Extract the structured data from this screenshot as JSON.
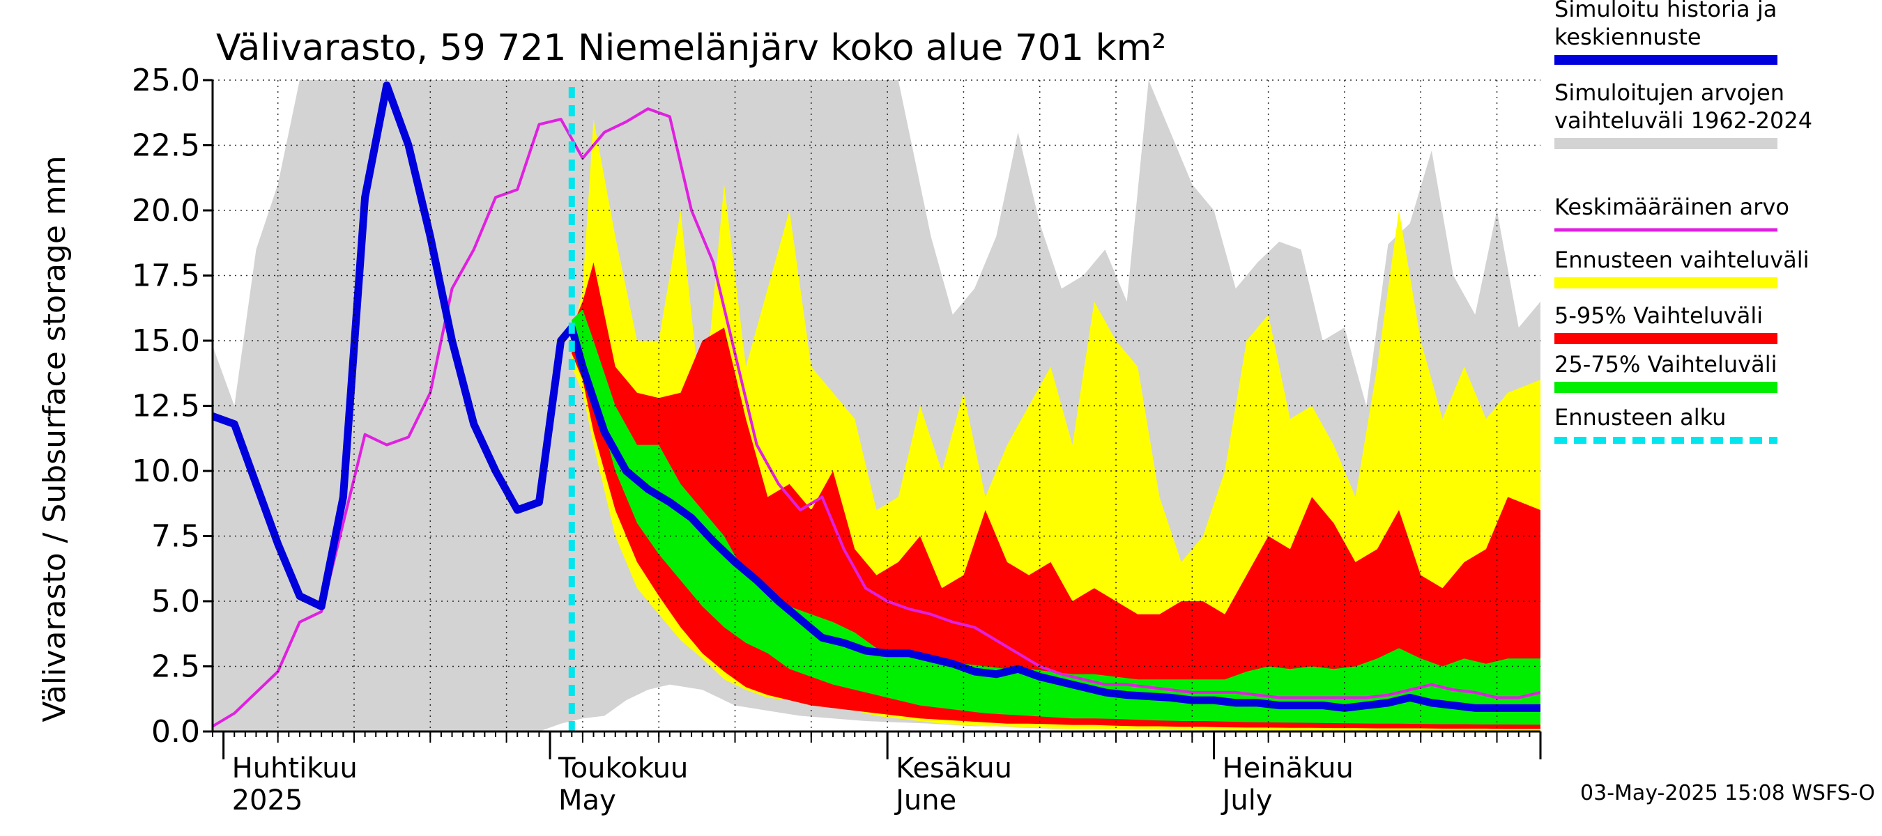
{
  "chart_data": {
    "type": "area",
    "title": "Välivarasto, 59 721 Niemelänjärv koko alue 701 km²",
    "ylabel": "Välivarasto / Subsurface storage  mm",
    "ylim": [
      0,
      25
    ],
    "yticks": [
      "0.0",
      "2.5",
      "5.0",
      "7.5",
      "10.0",
      "12.5",
      "15.0",
      "17.5",
      "20.0",
      "22.5",
      "25.0"
    ],
    "x_start": "2025-03-31",
    "x_end": "2025-07-31",
    "forecast_start": "2025-05-03",
    "grid": true,
    "legend_position": "right",
    "months": [
      {
        "fi": "Huhtikuu",
        "en": "2025",
        "date": "2025-04-01"
      },
      {
        "fi": "Toukokuu",
        "en": "May",
        "date": "2025-05-01"
      },
      {
        "fi": "Kesäkuu",
        "en": "June",
        "date": "2025-06-01"
      },
      {
        "fi": "Heinäkuu",
        "en": "July",
        "date": "2025-07-01"
      }
    ],
    "legend": [
      {
        "label": "Simuloitu historia ja\nkeskiennuste",
        "color": "#0000dd"
      },
      {
        "label": "Simuloitujen arvojen\nvaihteluväli 1962-2024",
        "color": "#d3d3d3"
      },
      {
        "label": "Keskimääräinen arvo",
        "color": "#e020e0"
      },
      {
        "label": "Ennusteen vaihteluväli",
        "color": "#ffff00"
      },
      {
        "label": "5-95% Vaihteluväli",
        "color": "#ff0000"
      },
      {
        "label": "25-75% Vaihteluväli",
        "color": "#00ee00"
      },
      {
        "label": "Ennusteen alku",
        "color": "#00e5ee"
      }
    ],
    "colors": {
      "history_range": "#d3d3d3",
      "forecast_range": "#ffff00",
      "p5_95": "#ff0000",
      "p25_75": "#00ee00",
      "median": "#0000dd",
      "mean": "#e020e0",
      "forecast_start": "#00e5ee"
    },
    "series": [
      {
        "name": "Simuloitujen arvojen vaihteluväli 1962-2024",
        "kind": "band",
        "x": [
          "2025-03-31",
          "2025-04-02",
          "2025-04-04",
          "2025-04-06",
          "2025-04-08",
          "2025-04-10",
          "2025-04-12",
          "2025-04-15",
          "2025-04-18",
          "2025-04-21",
          "2025-04-24",
          "2025-04-27",
          "2025-04-30",
          "2025-05-02",
          "2025-05-04",
          "2025-05-06",
          "2025-05-08",
          "2025-05-10",
          "2025-05-12",
          "2025-05-15",
          "2025-05-18",
          "2025-05-21",
          "2025-05-24",
          "2025-05-27",
          "2025-05-30",
          "2025-06-02",
          "2025-06-05",
          "2025-06-07",
          "2025-06-09",
          "2025-06-11",
          "2025-06-13",
          "2025-06-15",
          "2025-06-17",
          "2025-06-19",
          "2025-06-21",
          "2025-06-23",
          "2025-06-25",
          "2025-06-27",
          "2025-06-29",
          "2025-07-01",
          "2025-07-03",
          "2025-07-05",
          "2025-07-07",
          "2025-07-09",
          "2025-07-11",
          "2025-07-13",
          "2025-07-15",
          "2025-07-17",
          "2025-07-19",
          "2025-07-21",
          "2025-07-23",
          "2025-07-25",
          "2025-07-27",
          "2025-07-29",
          "2025-07-31"
        ],
        "low": [
          0,
          0,
          0,
          0,
          0,
          0,
          0,
          0,
          0,
          0,
          0,
          0,
          0,
          0.3,
          0.5,
          0.6,
          1.2,
          1.6,
          1.8,
          1.6,
          1.0,
          0.8,
          0.6,
          0.5,
          0.4,
          0.35,
          0.3,
          0.25,
          0.2,
          0.2,
          0.15,
          0.12,
          0.1,
          0.1,
          0.08,
          0.08,
          0.07,
          0.06,
          0.06,
          0.05,
          0.05,
          0.05,
          0.05,
          0.04,
          0.04,
          0.04,
          0.04,
          0.04,
          0.03,
          0.03,
          0.03,
          0.03,
          0.03,
          0.03,
          0.03
        ],
        "high": [
          14.8,
          12.5,
          18.5,
          21.0,
          25.0,
          25.0,
          25.0,
          25.0,
          25.0,
          25.0,
          25.0,
          25.0,
          25.0,
          25.0,
          25.0,
          25.0,
          25.0,
          25.0,
          25.0,
          25.0,
          25.0,
          25.0,
          25.0,
          25.0,
          25.0,
          25.0,
          19.0,
          16.0,
          17.0,
          19.0,
          23.0,
          19.5,
          17.0,
          17.5,
          18.5,
          16.5,
          25.0,
          23.0,
          21.0,
          20.0,
          17.0,
          18.0,
          18.8,
          18.5,
          15.0,
          15.5,
          12.5,
          18.7,
          19.5,
          22.3,
          17.5,
          16.0,
          20.0,
          15.5,
          16.5
        ]
      },
      {
        "name": "Ennusteen vaihteluväli",
        "kind": "band",
        "x": [
          "2025-05-03",
          "2025-05-04",
          "2025-05-05",
          "2025-05-07",
          "2025-05-09",
          "2025-05-11",
          "2025-05-13",
          "2025-05-15",
          "2025-05-17",
          "2025-05-19",
          "2025-05-21",
          "2025-05-23",
          "2025-05-25",
          "2025-05-27",
          "2025-05-29",
          "2025-05-31",
          "2025-06-02",
          "2025-06-04",
          "2025-06-06",
          "2025-06-08",
          "2025-06-10",
          "2025-06-12",
          "2025-06-14",
          "2025-06-16",
          "2025-06-18",
          "2025-06-20",
          "2025-06-22",
          "2025-06-24",
          "2025-06-26",
          "2025-06-28",
          "2025-06-30",
          "2025-07-02",
          "2025-07-04",
          "2025-07-06",
          "2025-07-08",
          "2025-07-10",
          "2025-07-12",
          "2025-07-14",
          "2025-07-16",
          "2025-07-18",
          "2025-07-20",
          "2025-07-22",
          "2025-07-24",
          "2025-07-26",
          "2025-07-28",
          "2025-07-31"
        ],
        "low": [
          14.0,
          13.0,
          11.0,
          7.5,
          5.5,
          4.5,
          3.5,
          2.8,
          2.0,
          1.6,
          1.3,
          1.2,
          1.0,
          0.9,
          0.8,
          0.6,
          0.5,
          0.4,
          0.3,
          0.25,
          0.2,
          0.2,
          0.15,
          0.12,
          0.1,
          0.1,
          0.08,
          0.08,
          0.06,
          0.05,
          0.05,
          0.05,
          0.04,
          0.04,
          0.04,
          0.03,
          0.03,
          0.03,
          0.03,
          0.03,
          0.03,
          0.03,
          0.03,
          0.03,
          0.03,
          0.03
        ],
        "high": [
          15.0,
          17.0,
          23.5,
          19.0,
          15.0,
          15.0,
          20.0,
          12.0,
          21.0,
          14.0,
          17.0,
          20.0,
          14.0,
          13.0,
          12.0,
          8.5,
          9.0,
          12.5,
          10.0,
          13.0,
          9.0,
          11.0,
          12.5,
          14.0,
          11.0,
          16.5,
          15.0,
          14.0,
          9.0,
          6.5,
          7.5,
          10.0,
          15.0,
          16.0,
          12.0,
          12.5,
          11.0,
          9.0,
          14.0,
          20.0,
          15.0,
          12.0,
          14.0,
          12.0,
          13.0,
          13.5
        ]
      },
      {
        "name": "5-95% Vaihteluväli",
        "kind": "band",
        "x": [
          "2025-05-03",
          "2025-05-04",
          "2025-05-05",
          "2025-05-07",
          "2025-05-09",
          "2025-05-11",
          "2025-05-13",
          "2025-05-15",
          "2025-05-17",
          "2025-05-19",
          "2025-05-21",
          "2025-05-23",
          "2025-05-25",
          "2025-05-27",
          "2025-05-29",
          "2025-05-31",
          "2025-06-02",
          "2025-06-04",
          "2025-06-06",
          "2025-06-08",
          "2025-06-10",
          "2025-06-12",
          "2025-06-14",
          "2025-06-16",
          "2025-06-18",
          "2025-06-20",
          "2025-06-22",
          "2025-06-24",
          "2025-06-26",
          "2025-06-28",
          "2025-06-30",
          "2025-07-02",
          "2025-07-04",
          "2025-07-06",
          "2025-07-08",
          "2025-07-10",
          "2025-07-12",
          "2025-07-14",
          "2025-07-16",
          "2025-07-18",
          "2025-07-20",
          "2025-07-22",
          "2025-07-24",
          "2025-07-26",
          "2025-07-28",
          "2025-07-31"
        ],
        "low": [
          14.5,
          13.5,
          11.5,
          8.5,
          6.5,
          5.2,
          4.0,
          3.0,
          2.3,
          1.7,
          1.4,
          1.2,
          1.0,
          0.9,
          0.8,
          0.7,
          0.6,
          0.5,
          0.45,
          0.4,
          0.35,
          0.3,
          0.3,
          0.28,
          0.25,
          0.25,
          0.22,
          0.2,
          0.2,
          0.18,
          0.18,
          0.16,
          0.15,
          0.15,
          0.14,
          0.14,
          0.13,
          0.13,
          0.12,
          0.12,
          0.12,
          0.11,
          0.11,
          0.11,
          0.1,
          0.1
        ],
        "high": [
          15.5,
          16.5,
          18.0,
          14.0,
          13.0,
          12.8,
          13.0,
          15.0,
          15.5,
          12.0,
          9.0,
          9.5,
          8.5,
          10.0,
          7.0,
          6.0,
          6.5,
          7.5,
          5.5,
          6.0,
          8.5,
          6.5,
          6.0,
          6.5,
          5.0,
          5.5,
          5.0,
          4.5,
          4.5,
          5.0,
          5.0,
          4.5,
          6.0,
          7.5,
          7.0,
          9.0,
          8.0,
          6.5,
          7.0,
          8.5,
          6.0,
          5.5,
          6.5,
          7.0,
          9.0,
          8.5
        ]
      },
      {
        "name": "25-75% Vaihteluväli",
        "kind": "band",
        "x": [
          "2025-05-03",
          "2025-05-04",
          "2025-05-05",
          "2025-05-07",
          "2025-05-09",
          "2025-05-11",
          "2025-05-13",
          "2025-05-15",
          "2025-05-17",
          "2025-05-19",
          "2025-05-21",
          "2025-05-23",
          "2025-05-25",
          "2025-05-27",
          "2025-05-29",
          "2025-05-31",
          "2025-06-02",
          "2025-06-04",
          "2025-06-06",
          "2025-06-08",
          "2025-06-10",
          "2025-06-12",
          "2025-06-14",
          "2025-06-16",
          "2025-06-18",
          "2025-06-20",
          "2025-06-22",
          "2025-06-24",
          "2025-06-26",
          "2025-06-28",
          "2025-06-30",
          "2025-07-02",
          "2025-07-04",
          "2025-07-06",
          "2025-07-08",
          "2025-07-10",
          "2025-07-12",
          "2025-07-14",
          "2025-07-16",
          "2025-07-18",
          "2025-07-20",
          "2025-07-22",
          "2025-07-24",
          "2025-07-26",
          "2025-07-28",
          "2025-07-31"
        ],
        "low": [
          15.0,
          14.5,
          13.0,
          10.0,
          8.0,
          6.8,
          5.8,
          4.8,
          4.0,
          3.4,
          3.0,
          2.4,
          2.1,
          1.8,
          1.6,
          1.4,
          1.2,
          1.0,
          0.9,
          0.8,
          0.7,
          0.65,
          0.6,
          0.55,
          0.5,
          0.5,
          0.48,
          0.45,
          0.42,
          0.4,
          0.4,
          0.38,
          0.36,
          0.35,
          0.34,
          0.33,
          0.32,
          0.31,
          0.3,
          0.3,
          0.29,
          0.28,
          0.28,
          0.27,
          0.27,
          0.26
        ],
        "high": [
          15.8,
          16.2,
          15.0,
          12.5,
          11.0,
          11.0,
          9.5,
          8.5,
          7.5,
          6.0,
          5.5,
          4.8,
          4.5,
          4.2,
          3.8,
          3.2,
          3.0,
          3.0,
          2.8,
          2.6,
          2.5,
          2.4,
          2.4,
          2.3,
          2.2,
          2.2,
          2.1,
          2.0,
          2.0,
          2.0,
          2.0,
          2.0,
          2.3,
          2.5,
          2.4,
          2.5,
          2.4,
          2.5,
          2.8,
          3.2,
          2.8,
          2.5,
          2.8,
          2.6,
          2.8,
          2.8
        ]
      },
      {
        "name": "Keskimääräinen arvo",
        "kind": "line",
        "x": [
          "2025-03-31",
          "2025-04-02",
          "2025-04-04",
          "2025-04-06",
          "2025-04-08",
          "2025-04-10",
          "2025-04-12",
          "2025-04-14",
          "2025-04-16",
          "2025-04-18",
          "2025-04-20",
          "2025-04-22",
          "2025-04-24",
          "2025-04-26",
          "2025-04-28",
          "2025-04-30",
          "2025-05-02",
          "2025-05-04",
          "2025-05-06",
          "2025-05-08",
          "2025-05-10",
          "2025-05-12",
          "2025-05-14",
          "2025-05-16",
          "2025-05-18",
          "2025-05-20",
          "2025-05-22",
          "2025-05-24",
          "2025-05-26",
          "2025-05-28",
          "2025-05-30",
          "2025-06-01",
          "2025-06-03",
          "2025-06-05",
          "2025-06-07",
          "2025-06-09",
          "2025-06-11",
          "2025-06-13",
          "2025-06-15",
          "2025-06-17",
          "2025-06-19",
          "2025-06-21",
          "2025-06-23",
          "2025-06-25",
          "2025-06-27",
          "2025-06-29",
          "2025-07-01",
          "2025-07-03",
          "2025-07-05",
          "2025-07-07",
          "2025-07-09",
          "2025-07-11",
          "2025-07-13",
          "2025-07-15",
          "2025-07-17",
          "2025-07-19",
          "2025-07-21",
          "2025-07-23",
          "2025-07-25",
          "2025-07-27",
          "2025-07-29",
          "2025-07-31"
        ],
        "values": [
          0.2,
          0.7,
          1.5,
          2.3,
          4.2,
          4.6,
          8.0,
          11.4,
          11.0,
          11.3,
          13.0,
          17.0,
          18.5,
          20.5,
          20.8,
          23.3,
          23.5,
          22.0,
          23.0,
          23.4,
          23.9,
          23.6,
          20.0,
          18.0,
          14.5,
          11.0,
          9.5,
          8.5,
          9.0,
          7.0,
          5.5,
          5.0,
          4.7,
          4.5,
          4.2,
          4.0,
          3.5,
          3.0,
          2.5,
          2.2,
          2.0,
          1.8,
          1.8,
          1.7,
          1.6,
          1.5,
          1.5,
          1.5,
          1.4,
          1.3,
          1.3,
          1.3,
          1.3,
          1.3,
          1.4,
          1.6,
          1.8,
          1.6,
          1.5,
          1.3,
          1.3,
          1.5
        ]
      },
      {
        "name": "Simuloitu historia ja keskiennuste",
        "kind": "line",
        "x": [
          "2025-03-31",
          "2025-04-02",
          "2025-04-04",
          "2025-04-06",
          "2025-04-08",
          "2025-04-10",
          "2025-04-12",
          "2025-04-14",
          "2025-04-16",
          "2025-04-18",
          "2025-04-20",
          "2025-04-22",
          "2025-04-24",
          "2025-04-26",
          "2025-04-28",
          "2025-04-30",
          "2025-05-02",
          "2025-05-03",
          "2025-05-04",
          "2025-05-06",
          "2025-05-08",
          "2025-05-10",
          "2025-05-12",
          "2025-05-14",
          "2025-05-16",
          "2025-05-18",
          "2025-05-20",
          "2025-05-22",
          "2025-05-24",
          "2025-05-26",
          "2025-05-28",
          "2025-05-30",
          "2025-06-01",
          "2025-06-03",
          "2025-06-05",
          "2025-06-07",
          "2025-06-09",
          "2025-06-11",
          "2025-06-13",
          "2025-06-15",
          "2025-06-17",
          "2025-06-19",
          "2025-06-21",
          "2025-06-23",
          "2025-06-25",
          "2025-06-27",
          "2025-06-29",
          "2025-07-01",
          "2025-07-03",
          "2025-07-05",
          "2025-07-07",
          "2025-07-09",
          "2025-07-11",
          "2025-07-13",
          "2025-07-15",
          "2025-07-17",
          "2025-07-19",
          "2025-07-21",
          "2025-07-23",
          "2025-07-25",
          "2025-07-27",
          "2025-07-29",
          "2025-07-31"
        ],
        "values": [
          12.1,
          11.8,
          9.5,
          7.2,
          5.2,
          4.8,
          9.0,
          20.5,
          24.8,
          22.5,
          19.0,
          15.0,
          11.8,
          10.0,
          8.5,
          8.8,
          15.0,
          15.5,
          14.0,
          11.5,
          10.0,
          9.3,
          8.8,
          8.2,
          7.3,
          6.5,
          5.8,
          5.0,
          4.3,
          3.6,
          3.4,
          3.1,
          3.0,
          3.0,
          2.8,
          2.6,
          2.3,
          2.2,
          2.4,
          2.1,
          1.9,
          1.7,
          1.5,
          1.4,
          1.35,
          1.3,
          1.2,
          1.2,
          1.1,
          1.1,
          1.0,
          1.0,
          1.0,
          0.9,
          1.0,
          1.1,
          1.3,
          1.1,
          1.0,
          0.9,
          0.9,
          0.9,
          0.9
        ]
      }
    ]
  },
  "timestamp": "03-May-2025 15:08 WSFS-O"
}
